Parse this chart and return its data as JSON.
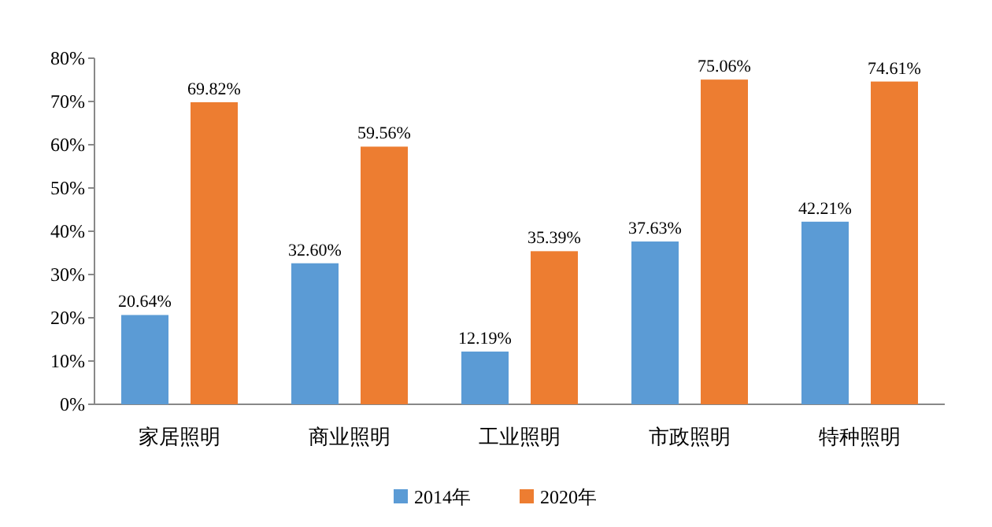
{
  "chart_data": {
    "type": "bar",
    "categories": [
      "家居照明",
      "商业照明",
      "工业照明",
      "市政照明",
      "特种照明"
    ],
    "series": [
      {
        "name": "2014年",
        "color": "#5b9bd5",
        "values": [
          20.64,
          32.6,
          12.19,
          37.63,
          42.21
        ],
        "value_labels": [
          "20.64%",
          "32.60%",
          "12.19%",
          "37.63%",
          "42.21%"
        ]
      },
      {
        "name": "2020年",
        "color": "#ed7d31",
        "values": [
          69.82,
          59.56,
          35.39,
          75.06,
          74.61
        ],
        "value_labels": [
          "69.82%",
          "59.56%",
          "35.39%",
          "75.06%",
          "74.61%"
        ]
      }
    ],
    "ylim": [
      0,
      80
    ],
    "yticks": [
      {
        "value": 0,
        "label": "0%"
      },
      {
        "value": 10,
        "label": "10%"
      },
      {
        "value": 20,
        "label": "20%"
      },
      {
        "value": 30,
        "label": "30%"
      },
      {
        "value": 40,
        "label": "40%"
      },
      {
        "value": 50,
        "label": "50%"
      },
      {
        "value": 60,
        "label": "60%"
      },
      {
        "value": 70,
        "label": "70%"
      },
      {
        "value": 80,
        "label": "80%"
      }
    ],
    "legend": "bottom"
  }
}
